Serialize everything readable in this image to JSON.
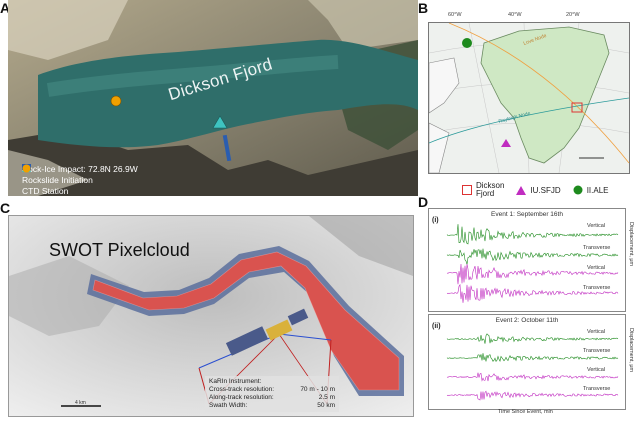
{
  "panels": {
    "a": "A",
    "b": "B",
    "c": "C",
    "d": "D"
  },
  "panel_a": {
    "fjord_label": "Dickson Fjord",
    "legend": [
      {
        "icon": "triangle-cyan-icon",
        "label": "Rock-Ice Impact: 72.8N 26.9W"
      },
      {
        "icon": "rect-blue-icon",
        "label": "Rockslide Initiation"
      },
      {
        "icon": "circle-orange-icon",
        "label": "CTD Station"
      }
    ]
  },
  "panel_b": {
    "lon_ticks": [
      "60°W",
      "40°W",
      "20°W"
    ],
    "line_labels": [
      "Love Node",
      "Rayleigh Node"
    ],
    "legend": [
      {
        "icon": "square-red-outline-icon",
        "label": "Dickson\nFjord"
      },
      {
        "icon": "triangle-magenta-icon",
        "label": "IU.SFJD"
      },
      {
        "icon": "circle-green-icon",
        "label": "II.ALE"
      }
    ]
  },
  "panel_c": {
    "title": "SWOT Pixelcloud",
    "karin_title": "KaRIn Instrument:",
    "karin_rows": [
      {
        "k": "Cross-track resolution:",
        "v": "70 m - 10 m"
      },
      {
        "k": "Along-track resolution:",
        "v": "2.5 m"
      },
      {
        "k": "Swath Width:",
        "v": "50 km"
      }
    ],
    "scale_label": "4 km"
  },
  "panel_d": {
    "event1": "Event 1: September 16th",
    "event2": "Event 2: October 11th",
    "roman1": "(i)",
    "roman2": "(ii)",
    "traces": [
      "Vertical",
      "Transverse",
      "Vertical",
      "Transverse"
    ],
    "ylabel": "Displacement, μm",
    "xlabel": "Time Since Event, min"
  },
  "colors": {
    "green": "#1d8a1d",
    "magenta": "#c02cc0",
    "swath": "#d9534f",
    "triangle": "#3ec3c0",
    "orange": "#f0a000",
    "blue": "#2a5db0"
  }
}
